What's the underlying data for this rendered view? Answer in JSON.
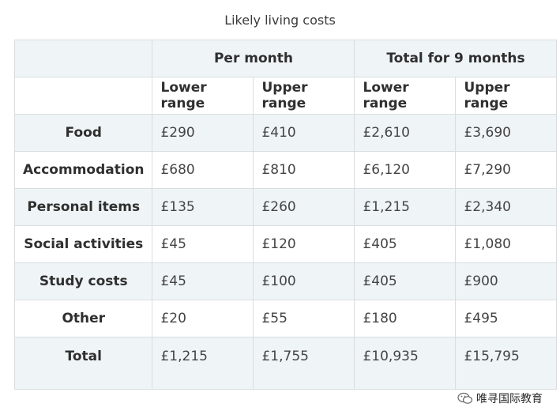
{
  "caption": "Likely living costs",
  "table": {
    "group_headers": [
      "Per month",
      "Total for 9 months"
    ],
    "sub_headers": [
      "Lower range",
      "Upper range",
      "Lower range",
      "Upper range"
    ],
    "rows": [
      {
        "label": "Food",
        "values": [
          "£290",
          "£410",
          "£2,610",
          "£3,690"
        ]
      },
      {
        "label": "Accommodation",
        "values": [
          "£680",
          "£810",
          "£6,120",
          "£7,290"
        ]
      },
      {
        "label": "Personal items",
        "values": [
          "£135",
          "£260",
          "£1,215",
          "£2,340"
        ]
      },
      {
        "label": "Social activities",
        "values": [
          "£45",
          "£120",
          "£405",
          "£1,080"
        ]
      },
      {
        "label": "Study costs",
        "values": [
          "£45",
          "£100",
          "£405",
          "£900"
        ]
      },
      {
        "label": "Other",
        "values": [
          "£20",
          "£55",
          "£180",
          "£495"
        ]
      },
      {
        "label": "Total",
        "values": [
          "£1,215",
          "£1,755",
          "£10,935",
          "£15,795"
        ]
      }
    ]
  },
  "watermark": {
    "text": "唯寻国际教育",
    "icon": "wechat-icon"
  }
}
